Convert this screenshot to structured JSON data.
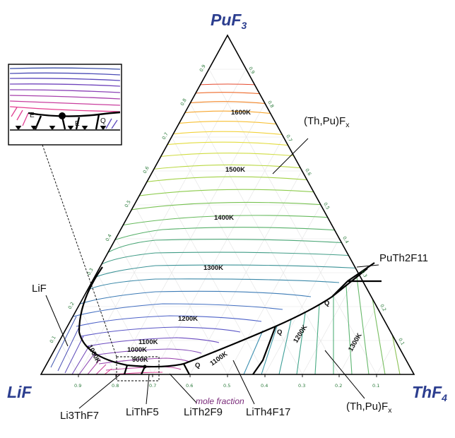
{
  "vertices": {
    "top": "PuF",
    "top_sub": "3",
    "left": "LiF",
    "right": "ThF",
    "right_sub": "4"
  },
  "isotherms": [
    "1600K",
    "1500K",
    "1400K",
    "1300K",
    "1200K",
    "1100K",
    "1000K",
    "900K",
    "1000K",
    "1100K",
    "1200K",
    "1300K"
  ],
  "phase_labels": {
    "thpu_top": {
      "main": "(Th,Pu)F",
      "sub": "x"
    },
    "puth2f11": "PuTh2F11",
    "lif": "LiF",
    "li3thf7": "Li3ThF7",
    "lithf5": "LiThF5",
    "lith2f9": "LiTh2F9",
    "lith4f17": "LiTh4F17",
    "thpu_bottom": {
      "main": "(Th,Pu)F",
      "sub": "x"
    }
  },
  "bottom_ticks": [
    "0.9",
    "0.8",
    "0.7",
    "0.6",
    "0.5",
    "0.4",
    "0.3",
    "0.2",
    "0.1"
  ],
  "left_ticks": [
    "0.1",
    "0.2",
    "0.3",
    "0.4",
    "0.5",
    "0.6",
    "0.7",
    "0.8",
    "0.9"
  ],
  "right_ticks": [
    "0.9",
    "0.8",
    "0.7",
    "0.6",
    "0.5",
    "0.4",
    "0.3",
    "0.2",
    "0.1"
  ],
  "mole_fraction": "mole fraction",
  "q_markers": [
    "Q",
    "Q",
    "Q"
  ],
  "inset": {
    "e1": "E",
    "e2": "E",
    "q": "Q"
  }
}
